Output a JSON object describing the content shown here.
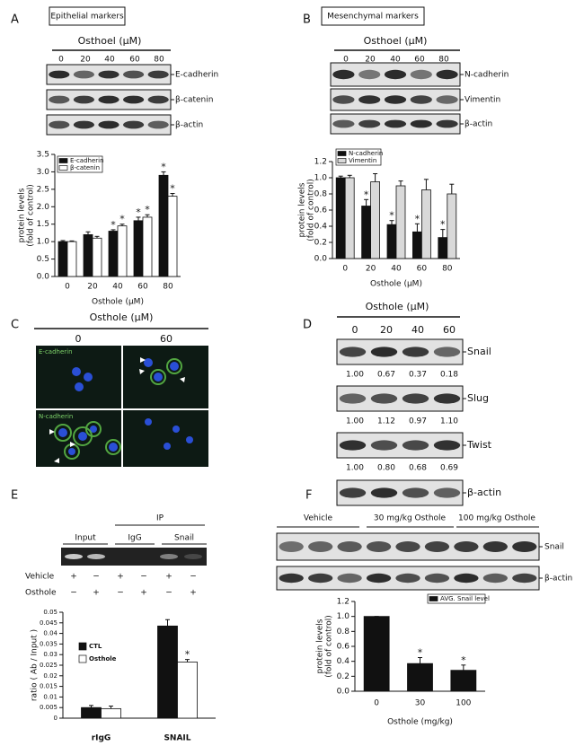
{
  "panels": {
    "A": {
      "letter": "A",
      "box": "Epithelial markers",
      "treatment": "Osthoel (μM)",
      "lanes": [
        "0",
        "20",
        "40",
        "60",
        "80"
      ],
      "blots": [
        "E-cadherin",
        "β-catenin",
        "β-actin"
      ]
    },
    "B": {
      "letter": "B",
      "box": "Mesenchymal markers",
      "treatment": "Osthoel (μM)",
      "lanes": [
        "0",
        "20",
        "40",
        "60",
        "80"
      ],
      "blots": [
        "N-cadherin",
        "Vimentin",
        "β-actin"
      ]
    },
    "C": {
      "letter": "C",
      "treatment": "Osthole (μM)",
      "columns": [
        "0",
        "60"
      ],
      "stains": [
        "E-cadherin",
        "N-cadherin"
      ]
    },
    "D": {
      "letter": "D",
      "treatment": "Osthole (μM)",
      "lanes": [
        "0",
        "20",
        "40",
        "60"
      ],
      "blots": [
        {
          "name": "Snail",
          "values": [
            "1.00",
            "0.67",
            "0.37",
            "0.18"
          ]
        },
        {
          "name": "Slug",
          "values": [
            "1.00",
            "1.12",
            "0.97",
            "1.10"
          ]
        },
        {
          "name": "Twist",
          "values": [
            "1.00",
            "0.80",
            "0.68",
            "0.69"
          ]
        },
        {
          "name": "β-actin"
        }
      ]
    },
    "E": {
      "letter": "E",
      "ip": "IP",
      "groups": [
        "Input",
        "IgG",
        "Snail"
      ],
      "rows": [
        {
          "name": "Vehicle",
          "signs": [
            "+",
            "−",
            "+",
            "−",
            "+",
            "−"
          ]
        },
        {
          "name": "Osthole",
          "signs": [
            "−",
            "+",
            "−",
            "+",
            "−",
            "+"
          ]
        }
      ]
    },
    "F": {
      "letter": "F",
      "groups": [
        "Vehicle",
        "30 mg/kg Osthole",
        "100 mg/kg Osthole"
      ],
      "blots": [
        "Snail",
        "β-actin"
      ]
    }
  },
  "chart_data": [
    {
      "type": "bar",
      "categories": [
        "0",
        "20",
        "40",
        "60",
        "80"
      ],
      "xlabel": "Osthole (μM)",
      "ylabel": [
        "protein levels",
        "(fold of control)"
      ],
      "ylim": [
        0,
        3.5
      ],
      "yticks": [
        {
          "value": 0,
          "label": "0.0"
        },
        0.5,
        {
          "value": 1,
          "label": "1.0"
        },
        1.5,
        {
          "value": 2,
          "label": "2.0"
        },
        2.5,
        {
          "value": 3,
          "label": "3.0"
        },
        3.5
      ],
      "legend": "upper left",
      "series": [
        {
          "name": "E-cadherin",
          "color": "#111111",
          "values": [
            1.0,
            1.2,
            1.3,
            1.6,
            2.9
          ],
          "errors": [
            0.03,
            0.08,
            0.04,
            0.1,
            0.1
          ],
          "annotations": [
            null,
            null,
            "*",
            "*",
            "*"
          ]
        },
        {
          "name": "β-catenin",
          "color": "#ffffff",
          "values": [
            1.0,
            1.1,
            1.45,
            1.7,
            2.3
          ],
          "errors": [
            0.02,
            0.05,
            0.05,
            0.07,
            0.08
          ],
          "annotations": [
            null,
            null,
            "*",
            "*",
            "*"
          ]
        }
      ]
    },
    {
      "type": "bar",
      "categories": [
        "0",
        "20",
        "40",
        "60",
        "80"
      ],
      "xlabel": "Osthole (μM)",
      "ylabel": [
        "protein levels",
        "(fold of control)"
      ],
      "ylim": [
        0,
        1.2
      ],
      "yticks": [
        {
          "value": 0,
          "label": "0.0"
        },
        0.2,
        0.4,
        0.6,
        0.8,
        {
          "value": 1,
          "label": "1.0"
        },
        1.2
      ],
      "legend": "upper left",
      "series": [
        {
          "name": "N-cadherin",
          "color": "#111111",
          "values": [
            1.0,
            0.65,
            0.42,
            0.33,
            0.26
          ],
          "errors": [
            0.02,
            0.08,
            0.05,
            0.1,
            0.1
          ],
          "annotations": [
            null,
            "*",
            "*",
            "*",
            "*"
          ]
        },
        {
          "name": "Vimentin",
          "color": "#d9d9d9",
          "values": [
            1.0,
            0.95,
            0.9,
            0.85,
            0.8
          ],
          "errors": [
            0.03,
            0.1,
            0.06,
            0.13,
            0.12
          ],
          "annotations": [
            null,
            null,
            null,
            null,
            null
          ]
        }
      ]
    },
    {
      "type": "bar",
      "categories": [
        "rIgG",
        "SNAIL"
      ],
      "ylabel": "ratio ( Ab / Input )",
      "ylim": [
        0,
        0.05
      ],
      "yticks": [
        0,
        0.005,
        0.01,
        0.015,
        0.02,
        0.025,
        0.03,
        0.035,
        0.04,
        0.045,
        0.05
      ],
      "legend": "upper left",
      "series": [
        {
          "name": "CTL",
          "color": "#111111",
          "values": [
            0.005,
            0.0435
          ],
          "errors": [
            0.001,
            0.003
          ],
          "annotations": [
            null,
            null
          ]
        },
        {
          "name": "Osthole",
          "color": "#ffffff",
          "values": [
            0.0045,
            0.0265
          ],
          "errors": [
            0.0012,
            0.0012
          ],
          "annotations": [
            null,
            "*"
          ]
        }
      ]
    },
    {
      "type": "bar",
      "categories": [
        "0",
        "30",
        "100"
      ],
      "xlabel": "Osthole (mg/kg)",
      "ylabel": [
        "protein levels",
        "(fold of control)"
      ],
      "ylim": [
        0,
        1.2
      ],
      "yticks": [
        {
          "value": 0,
          "label": "0.0"
        },
        0.2,
        0.4,
        0.6,
        0.8,
        {
          "value": 1,
          "label": "1.0"
        },
        1.2
      ],
      "legend": "upper right",
      "series": [
        {
          "name": "AVG. Snail level",
          "color": "#111111",
          "values": [
            1.0,
            0.37,
            0.28
          ],
          "errors": [
            0,
            0.08,
            0.07
          ],
          "annotations": [
            null,
            "*",
            "*"
          ]
        }
      ]
    }
  ]
}
